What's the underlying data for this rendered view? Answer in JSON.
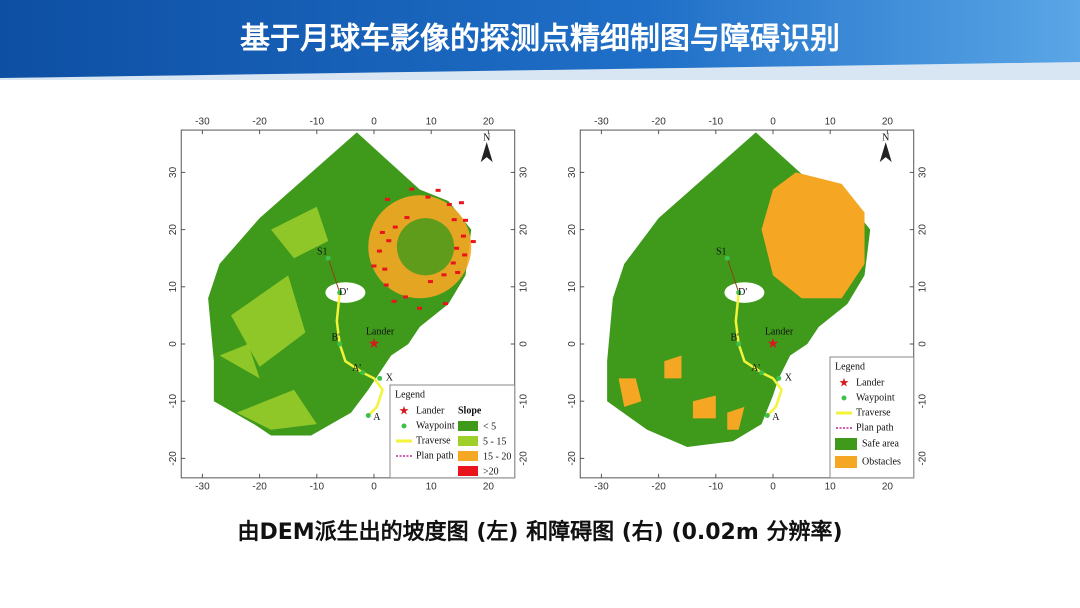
{
  "header": {
    "title": "基于月球车影像的探测点精细制图与障碍识别"
  },
  "maps": [
    {
      "xticks": [
        -30,
        -20,
        -10,
        0,
        10,
        20
      ],
      "yticks": [
        -20,
        -10,
        0,
        10,
        20,
        30
      ],
      "north": "N",
      "points": [
        {
          "label": "S1"
        },
        {
          "label": "D'"
        },
        {
          "label": "B'"
        },
        {
          "label": "A'"
        },
        {
          "label": "X"
        },
        {
          "label": "A"
        },
        {
          "label": "Lander"
        }
      ],
      "legend": {
        "title": "Legend",
        "items": [
          {
            "label": "Lander"
          },
          {
            "label": "Waypoint"
          },
          {
            "label": "Traverse"
          },
          {
            "label": "Plan path"
          }
        ],
        "class_title": "Slope",
        "classes": [
          {
            "label": "< 5",
            "color": "#3f9a1c"
          },
          {
            "label": "5 - 15",
            "color": "#9fcf2a"
          },
          {
            "label": "15 - 20",
            "color": "#f5a623"
          },
          {
            "label": ">20",
            "color": "#e8131b"
          }
        ]
      }
    },
    {
      "xticks": [
        -30,
        -20,
        -10,
        0,
        10,
        20
      ],
      "yticks": [
        -20,
        -10,
        0,
        10,
        20,
        30
      ],
      "north": "N",
      "points": [
        {
          "label": "S1"
        },
        {
          "label": "D'"
        },
        {
          "label": "B'"
        },
        {
          "label": "A'"
        },
        {
          "label": "X"
        },
        {
          "label": "A"
        },
        {
          "label": "Lander"
        }
      ],
      "legend": {
        "title": "Legend",
        "items": [
          {
            "label": "Lander"
          },
          {
            "label": "Waypoint"
          },
          {
            "label": "Traverse"
          },
          {
            "label": "Plan path"
          }
        ],
        "classes": [
          {
            "label": "Safe area",
            "color": "#3f9a1c"
          },
          {
            "label": "Obstacles",
            "color": "#f5a623"
          }
        ]
      }
    }
  ],
  "caption": "由DEM派生出的坡度图 (左) 和障碍图 (右) (0.02m 分辨率)"
}
